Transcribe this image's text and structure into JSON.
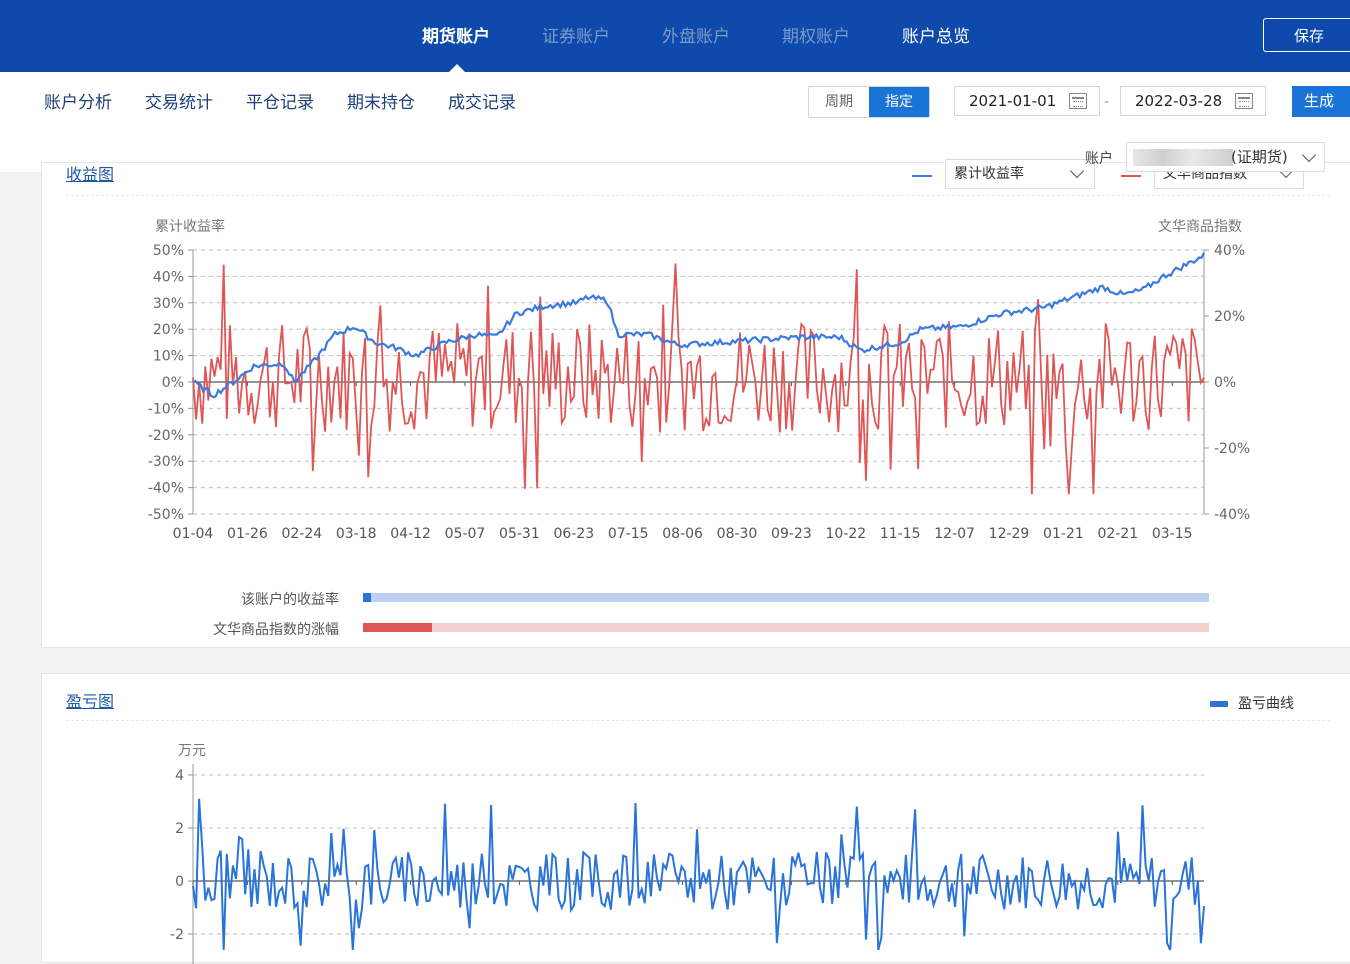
{
  "top_tabs": [
    {
      "label": "期货账户",
      "state": "active"
    },
    {
      "label": "证券账户",
      "state": "dim"
    },
    {
      "label": "外盘账户",
      "state": "dim"
    },
    {
      "label": "期权账户",
      "state": "dim"
    },
    {
      "label": "账户总览",
      "state": "bright"
    }
  ],
  "save_label": "保存",
  "sub_tabs": [
    "账户分析",
    "交易统计",
    "平仓记录",
    "期末持仓",
    "成交记录"
  ],
  "period_toggle": {
    "options": [
      "周期",
      "指定"
    ],
    "selected": "指定"
  },
  "date_range": {
    "start": "2021-01-01",
    "separator": "-",
    "end": "2022-03-28"
  },
  "generate_label": "生成",
  "account": {
    "label": "账户",
    "value_visible": "(证期货)"
  },
  "return_panel": {
    "title": "收益图",
    "legend_left_value": "累计收益率",
    "legend_right_value": "文华商品指数",
    "left_axis_title": "累计收益率",
    "right_axis_title": "文华商品指数",
    "compare_bars": [
      {
        "label": "该账户的收益率",
        "fill": 0.009,
        "color": "#2a74d9",
        "track": "#bed0f0"
      },
      {
        "label": "文华商品指数的涨幅",
        "fill": 0.082,
        "color": "#e05656",
        "track": "#f4d0d0"
      }
    ]
  },
  "pnl_panel": {
    "title": "盈亏图",
    "legend": "盈亏曲线",
    "unit": "万元"
  },
  "chart_data": [
    {
      "type": "line",
      "x_ticks": [
        "01-04",
        "01-26",
        "02-24",
        "03-18",
        "04-12",
        "05-07",
        "05-31",
        "06-23",
        "07-15",
        "08-06",
        "08-30",
        "09-23",
        "10-22",
        "11-15",
        "12-07",
        "12-29",
        "01-21",
        "02-21",
        "03-15"
      ],
      "y_left": {
        "title": "累计收益率",
        "ticks": [
          "50%",
          "40%",
          "30%",
          "20%",
          "10%",
          "0%",
          "-10%",
          "-20%",
          "-30%",
          "-40%",
          "-50%"
        ],
        "range": [
          -50,
          50
        ]
      },
      "y_right": {
        "title": "文华商品指数",
        "ticks": [
          "40%",
          "20%",
          "0%",
          "-20%",
          "-40%"
        ],
        "range": [
          -40,
          40
        ]
      },
      "grid": "dashed horizontal",
      "series": [
        {
          "name": "累计收益率",
          "axis": "left",
          "color": "#3b7be0",
          "keypoints": [
            [
              0,
              0
            ],
            [
              0.02,
              -5
            ],
            [
              0.04,
              0
            ],
            [
              0.06,
              6
            ],
            [
              0.09,
              7
            ],
            [
              0.1,
              0
            ],
            [
              0.12,
              8
            ],
            [
              0.14,
              18
            ],
            [
              0.16,
              21
            ],
            [
              0.18,
              15
            ],
            [
              0.2,
              13
            ],
            [
              0.22,
              10
            ],
            [
              0.25,
              15
            ],
            [
              0.28,
              18
            ],
            [
              0.3,
              17
            ],
            [
              0.32,
              26
            ],
            [
              0.35,
              29
            ],
            [
              0.38,
              30
            ],
            [
              0.39,
              32
            ],
            [
              0.41,
              31
            ],
            [
              0.42,
              18
            ],
            [
              0.45,
              18
            ],
            [
              0.48,
              14
            ],
            [
              0.52,
              15
            ],
            [
              0.56,
              16
            ],
            [
              0.6,
              17
            ],
            [
              0.64,
              17
            ],
            [
              0.66,
              12
            ],
            [
              0.7,
              15
            ],
            [
              0.72,
              20
            ],
            [
              0.76,
              21
            ],
            [
              0.8,
              26
            ],
            [
              0.84,
              28
            ],
            [
              0.87,
              32
            ],
            [
              0.9,
              36
            ],
            [
              0.92,
              33
            ],
            [
              0.94,
              35
            ],
            [
              0.96,
              40
            ],
            [
              0.98,
              44
            ],
            [
              1,
              48
            ]
          ]
        },
        {
          "name": "文华商品指数",
          "axis": "right",
          "color": "#e05656",
          "style": "volatile"
        }
      ]
    },
    {
      "type": "line",
      "unit": "万元",
      "y_ticks": [
        "4",
        "2",
        "0",
        "-2"
      ],
      "y_range": [
        -2.5,
        4
      ],
      "series": [
        {
          "name": "盈亏曲线",
          "color": "#2a74d9",
          "style": "volatile"
        }
      ]
    }
  ]
}
